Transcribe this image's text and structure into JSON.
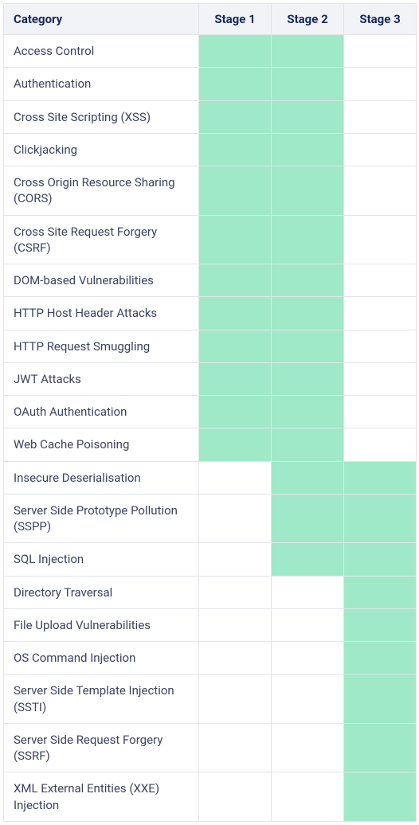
{
  "table": {
    "header_bg": "#f2f3f7",
    "header_text_color": "#16295a",
    "cell_text_color": "#3b4360",
    "border_color": "#e2e4e9",
    "fill_color": "#a0e9c8",
    "empty_color": "#ffffff",
    "columns": {
      "category_label": "Category",
      "stage_labels": [
        "Stage 1",
        "Stage 2",
        "Stage 3"
      ]
    },
    "rows": [
      {
        "category": "Access Control",
        "stages": [
          true,
          true,
          false
        ]
      },
      {
        "category": "Authentication",
        "stages": [
          true,
          true,
          false
        ]
      },
      {
        "category": "Cross Site Scripting (XSS)",
        "stages": [
          true,
          true,
          false
        ]
      },
      {
        "category": "Clickjacking",
        "stages": [
          true,
          true,
          false
        ]
      },
      {
        "category": "Cross Origin Resource Sharing (CORS)",
        "stages": [
          true,
          true,
          false
        ]
      },
      {
        "category": "Cross Site Request Forgery (CSRF)",
        "stages": [
          true,
          true,
          false
        ]
      },
      {
        "category": "DOM-based Vulnerabilities",
        "stages": [
          true,
          true,
          false
        ]
      },
      {
        "category": "HTTP Host Header Attacks",
        "stages": [
          true,
          true,
          false
        ]
      },
      {
        "category": "HTTP Request Smuggling",
        "stages": [
          true,
          true,
          false
        ]
      },
      {
        "category": "JWT Attacks",
        "stages": [
          true,
          true,
          false
        ]
      },
      {
        "category": "OAuth Authentication",
        "stages": [
          true,
          true,
          false
        ]
      },
      {
        "category": "Web Cache Poisoning",
        "stages": [
          true,
          true,
          false
        ]
      },
      {
        "category": "Insecure Deserialisation",
        "stages": [
          false,
          true,
          true
        ]
      },
      {
        "category": "Server Side Prototype Pollution (SSPP)",
        "stages": [
          false,
          true,
          true
        ]
      },
      {
        "category": "SQL Injection",
        "stages": [
          false,
          true,
          true
        ]
      },
      {
        "category": "Directory Traversal",
        "stages": [
          false,
          false,
          true
        ]
      },
      {
        "category": "File Upload Vulnerabilities",
        "stages": [
          false,
          false,
          true
        ]
      },
      {
        "category": "OS Command Injection",
        "stages": [
          false,
          false,
          true
        ]
      },
      {
        "category": "Server Side Template Injection (SSTI)",
        "stages": [
          false,
          false,
          true
        ]
      },
      {
        "category": "Server Side Request Forgery (SSRF)",
        "stages": [
          false,
          false,
          true
        ]
      },
      {
        "category": "XML External Entities (XXE) Injection",
        "stages": [
          false,
          false,
          true
        ]
      }
    ]
  }
}
